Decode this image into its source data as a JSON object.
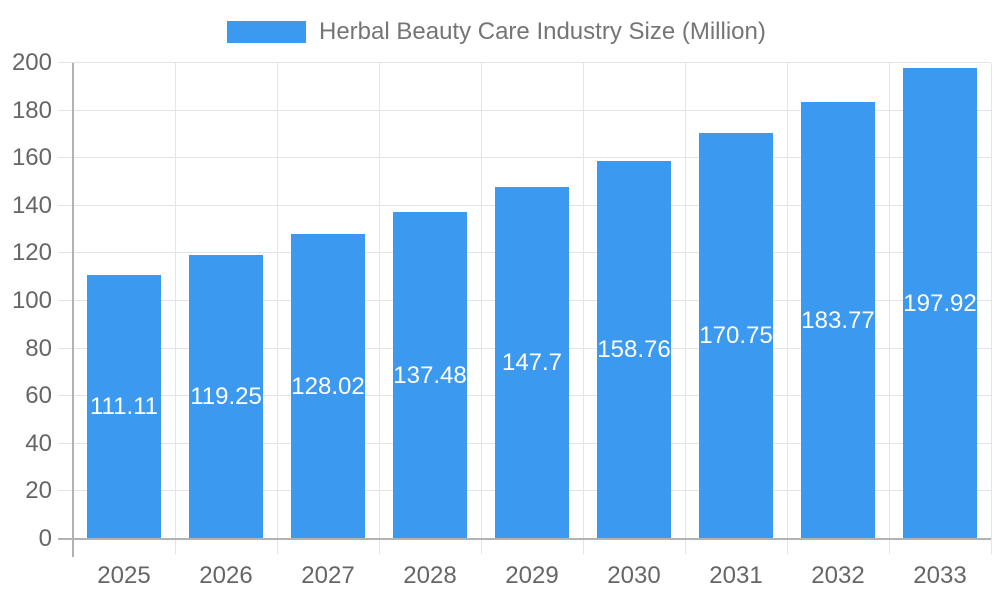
{
  "legend": {
    "label": "Herbal Beauty Care Industry Size (Million)"
  },
  "chart_data": {
    "type": "bar",
    "title": "Herbal Beauty Care Industry Size (Million)",
    "categories": [
      "2025",
      "2026",
      "2027",
      "2028",
      "2029",
      "2030",
      "2031",
      "2032",
      "2033"
    ],
    "values": [
      111.11,
      119.25,
      128.02,
      137.48,
      147.7,
      158.76,
      170.75,
      183.77,
      197.92
    ],
    "value_labels": [
      "111.11",
      "119.25",
      "128.02",
      "137.48",
      "147.7",
      "158.76",
      "170.75",
      "183.77",
      "197.92"
    ],
    "xlabel": "",
    "ylabel": "",
    "ylim": [
      0,
      200
    ],
    "ytick_step": 20,
    "yticks": [
      0,
      20,
      40,
      60,
      80,
      100,
      120,
      140,
      160,
      180,
      200
    ],
    "grid": true,
    "legend_position": "top",
    "colors": {
      "bar": "#3B99F0",
      "grid": "#e4e4e4",
      "axis": "#b2b2b2",
      "axis_text": "#666666",
      "title_text": "#757575",
      "value_text": "#ffffff",
      "background": "#ffffff"
    }
  }
}
